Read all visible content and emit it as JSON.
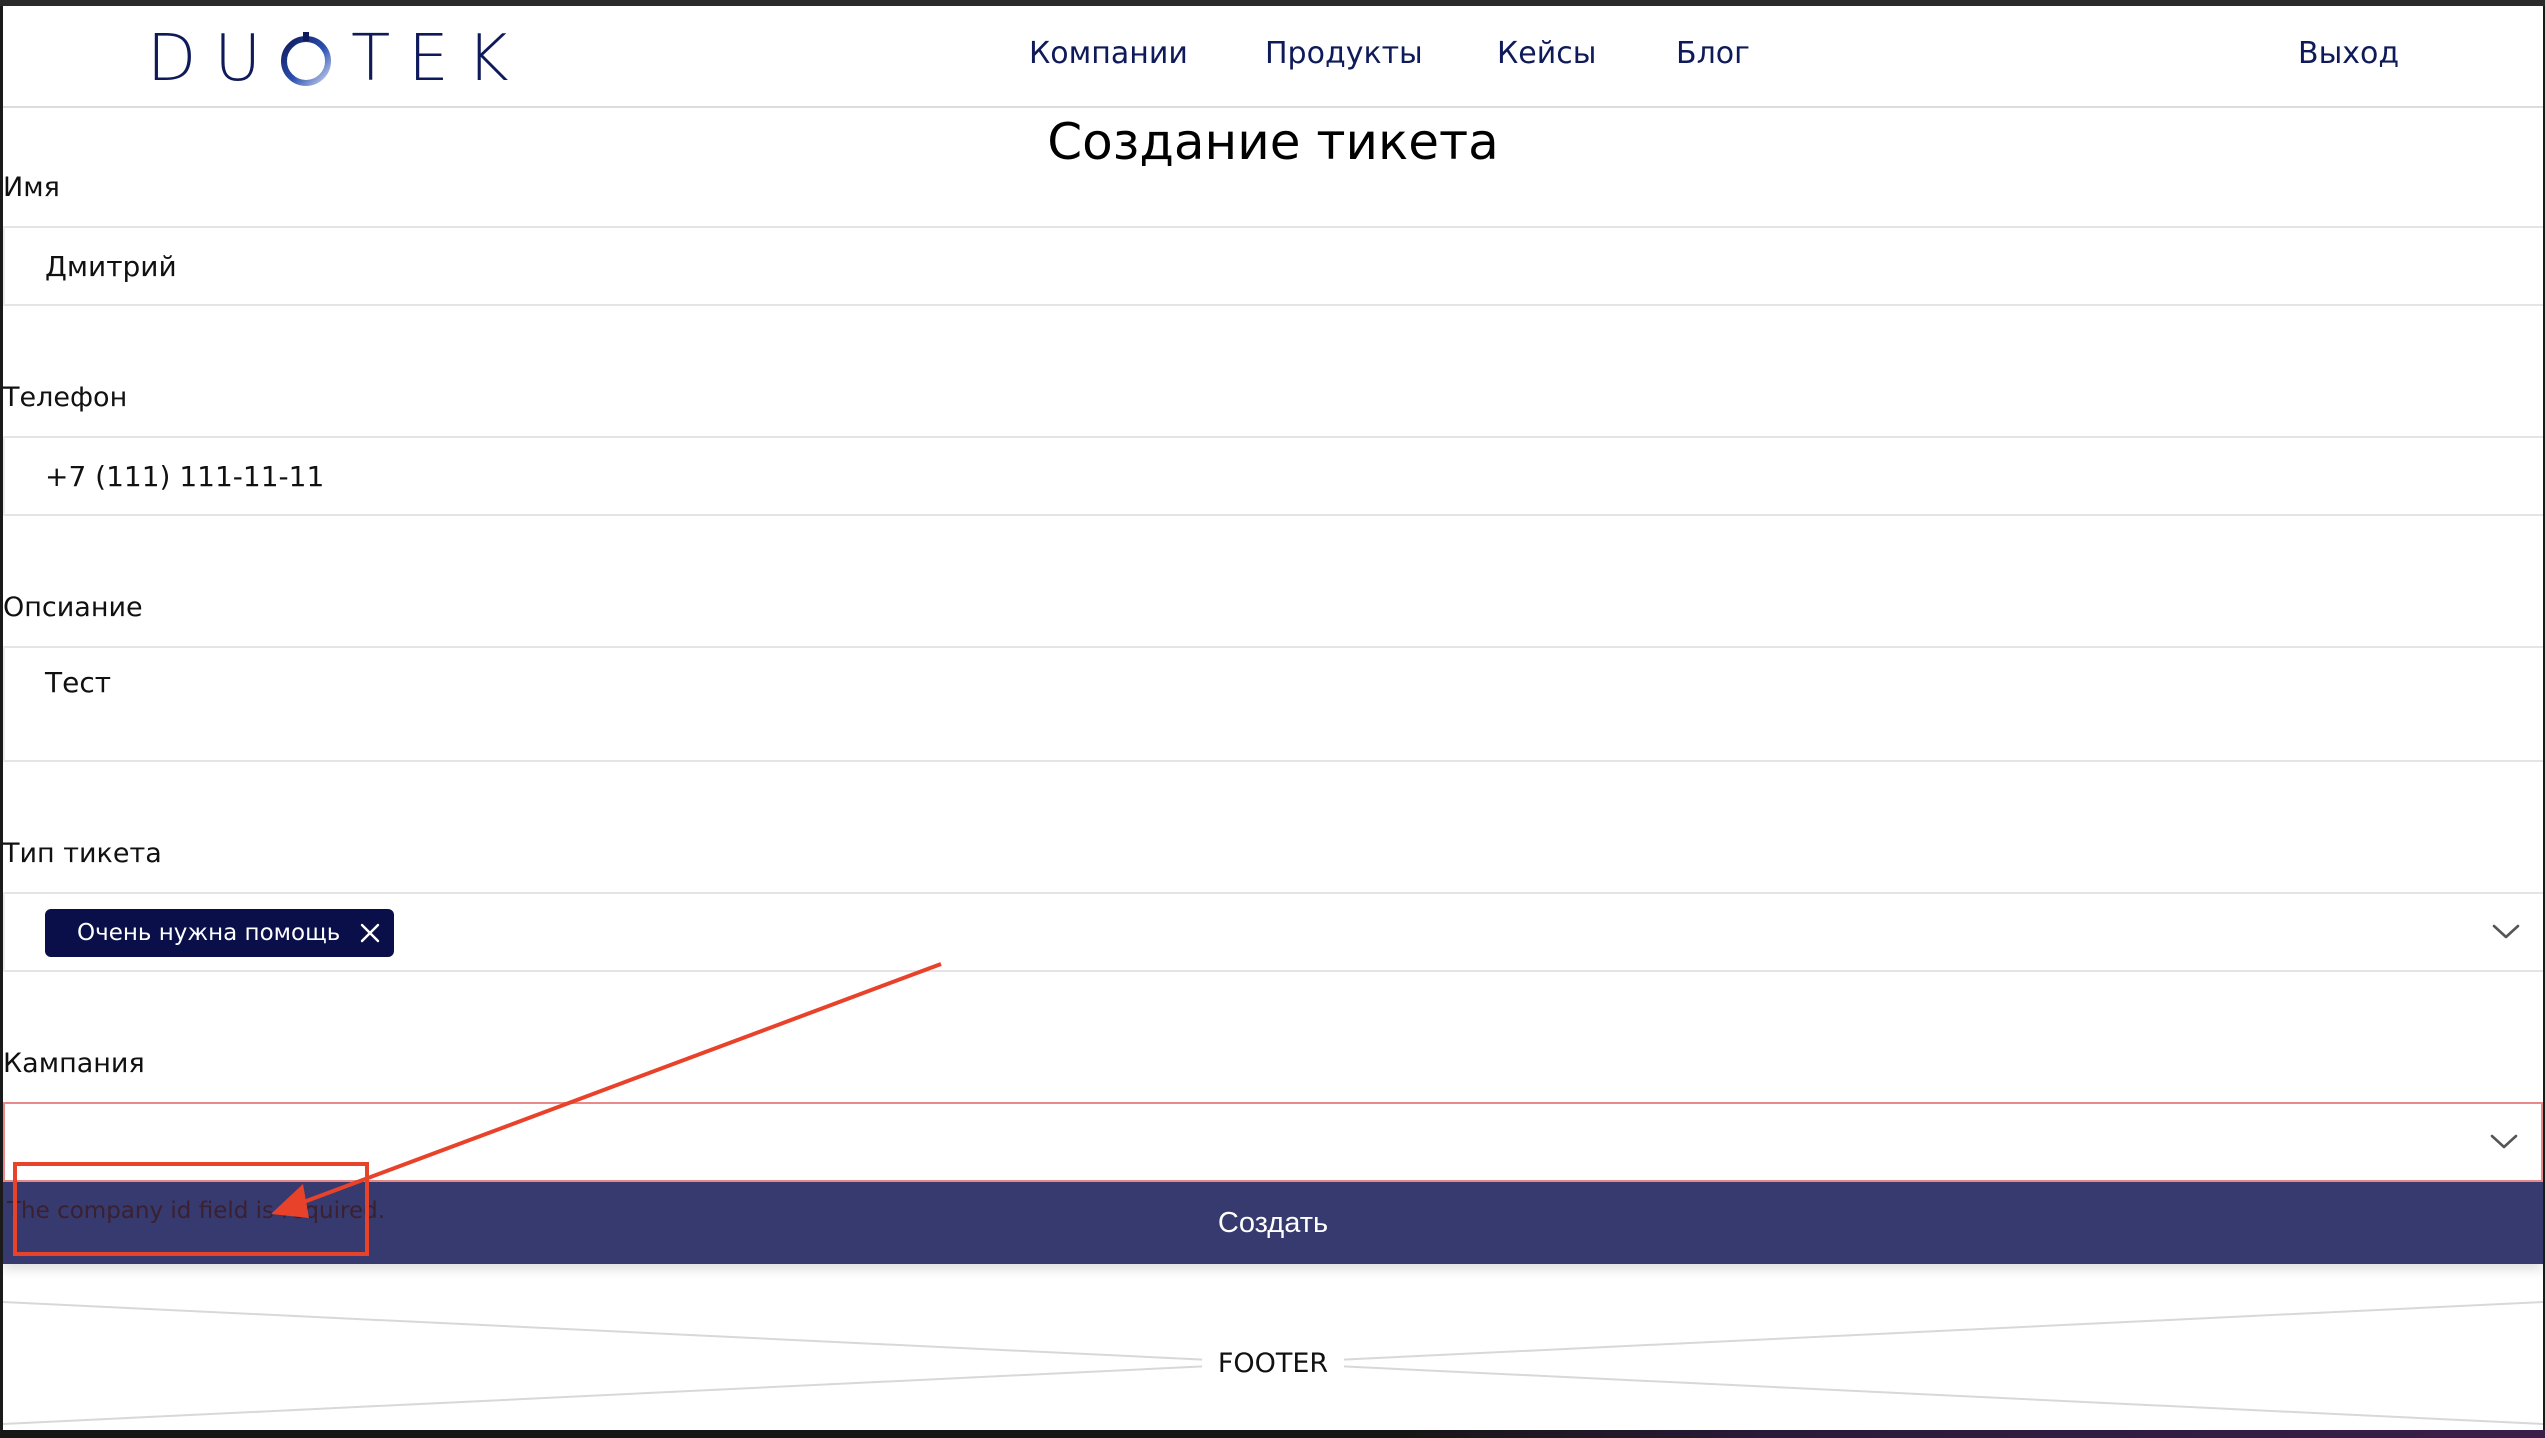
{
  "header": {
    "logo_text_left": "DU",
    "logo_text_right": "TEK",
    "nav": [
      {
        "label": "Компании"
      },
      {
        "label": "Продукты"
      },
      {
        "label": "Кейсы"
      },
      {
        "label": "Блог"
      }
    ],
    "logout_label": "Выход"
  },
  "form": {
    "title": "Создание тикета",
    "name": {
      "label": "Имя",
      "value": "Дмитрий"
    },
    "phone": {
      "label": "Телефон",
      "value": "+7 (111) 111-11-11"
    },
    "description": {
      "label": "Опсиание",
      "value": "Тест"
    },
    "ticket_type": {
      "label": "Тип тикета",
      "selected_tag": "Очень нужна помощь"
    },
    "campaign": {
      "label": "Кампания",
      "value": "",
      "error": "The company id field is required."
    },
    "submit_label": "Создать"
  },
  "footer": {
    "label": "FOOTER"
  },
  "colors": {
    "brand": "#0e1a5a",
    "tag_bg": "#0a0f4a",
    "submit_bg": "#363a6e",
    "invalid_border": "#e88a8a",
    "annotation": "#e8432a"
  },
  "icons": {
    "logo_ring": "logo-ring-icon",
    "chevron": "chevron-down-icon",
    "remove": "close-icon"
  }
}
